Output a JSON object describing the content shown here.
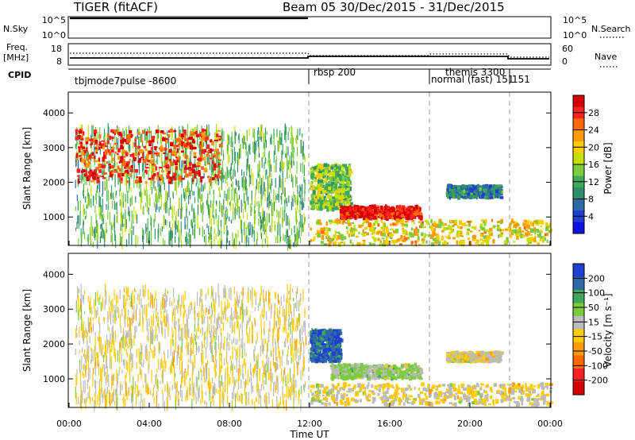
{
  "header": {
    "left": "TIGER (fitACF)",
    "right": "Beam 05  30/Dec/2015 - 31/Dec/2015"
  },
  "top_panels": {
    "nsky_label": "N.Sky",
    "nsky_ticks": [
      "10^5",
      "10^0"
    ],
    "nsearch_label": "N.Search",
    "freq_label": "Freq.",
    "freq_unit": "[MHz]",
    "freq_ticks": [
      "18",
      "8"
    ],
    "nave_label": "Nave",
    "nave_ticks": [
      "60",
      "0"
    ],
    "cpid_label": "CPID",
    "cpid_segments": [
      {
        "label": "tbjmode7pulse -8600",
        "start_hour": 0
      },
      {
        "label": "rbsp 200",
        "start_hour": 12
      },
      {
        "label": "themis 3300",
        "start_hour": 18
      },
      {
        "label": "normal (fast) 151",
        "start_hour": 18
      },
      {
        "label": "151",
        "start_hour": 22
      }
    ]
  },
  "axes": {
    "ylabel": "Slant Range [km]",
    "xlabel": "Time UT",
    "y_ticks": [
      "1000",
      "2000",
      "3000",
      "4000"
    ],
    "x_ticks": [
      "00:00",
      "04:00",
      "08:00",
      "12:00",
      "16:00",
      "20:00",
      "00:00"
    ]
  },
  "colorbars": {
    "power": {
      "label": "Power [dB]",
      "ticks": [
        "28",
        "24",
        "20",
        "16",
        "12",
        "8",
        "4"
      ],
      "colors": [
        "#d40000",
        "#ff2020",
        "#ff6a00",
        "#ff9a00",
        "#ffcc00",
        "#c8e000",
        "#7acc3c",
        "#3fa85a",
        "#2f8f6a",
        "#2f6aa8",
        "#1f3fd0",
        "#1010e0"
      ]
    },
    "velocity": {
      "label": "Velocity [m s⁻¹]",
      "ticks": [
        "200",
        "100",
        "50",
        "15",
        "-15",
        "-50",
        "-100",
        "-200"
      ],
      "colors": [
        "#1f3fd0",
        "#2f6aa8",
        "#3fa85a",
        "#7acc3c",
        "#bbbbbb",
        "#ffcc00",
        "#ff9a00",
        "#ff6a00",
        "#ff2020",
        "#d40000"
      ]
    }
  },
  "chart_data": [
    {
      "type": "heatmap",
      "title": "Power",
      "xlabel": "Time UT",
      "ylabel": "Slant Range [km]",
      "xlim": [
        0,
        24
      ],
      "ylim": [
        180,
        4600
      ],
      "scale_range": [
        0,
        30
      ],
      "scale_unit": "dB",
      "regions": [
        {
          "t": [
            0.3,
            11.8
          ],
          "r": [
            200,
            3550
          ],
          "level": 12,
          "note": "sparse mixed echoes"
        },
        {
          "t": [
            0.3,
            7.5
          ],
          "r": [
            2000,
            3500
          ],
          "level": 26
        },
        {
          "t": [
            12.0,
            14.0
          ],
          "r": [
            1200,
            2500
          ],
          "level": 14
        },
        {
          "t": [
            13.5,
            17.5
          ],
          "r": [
            950,
            1300
          ],
          "level": 28
        },
        {
          "t": [
            12.0,
            24.0
          ],
          "r": [
            200,
            900
          ],
          "level": 18
        },
        {
          "t": [
            18.8,
            21.5
          ],
          "r": [
            1550,
            1900
          ],
          "level": 8
        }
      ]
    },
    {
      "type": "heatmap",
      "title": "Velocity",
      "xlabel": "Time UT",
      "ylabel": "Slant Range [km]",
      "xlim": [
        0,
        24
      ],
      "ylim": [
        180,
        4600
      ],
      "scale_range": [
        -200,
        200
      ],
      "scale_unit": "m s-1",
      "regions": [
        {
          "t": [
            0.3,
            11.8
          ],
          "r": [
            200,
            3550
          ],
          "level": 0,
          "note": "sparse mixed velocities"
        },
        {
          "t": [
            12.0,
            13.5
          ],
          "r": [
            1500,
            2400
          ],
          "level": 150
        },
        {
          "t": [
            13.0,
            17.5
          ],
          "r": [
            1000,
            1400
          ],
          "level": 40
        },
        {
          "t": [
            12.0,
            24.0
          ],
          "r": [
            250,
            850
          ],
          "level": 0
        },
        {
          "t": [
            18.8,
            21.5
          ],
          "r": [
            1500,
            1750
          ],
          "level": 0
        }
      ]
    }
  ]
}
